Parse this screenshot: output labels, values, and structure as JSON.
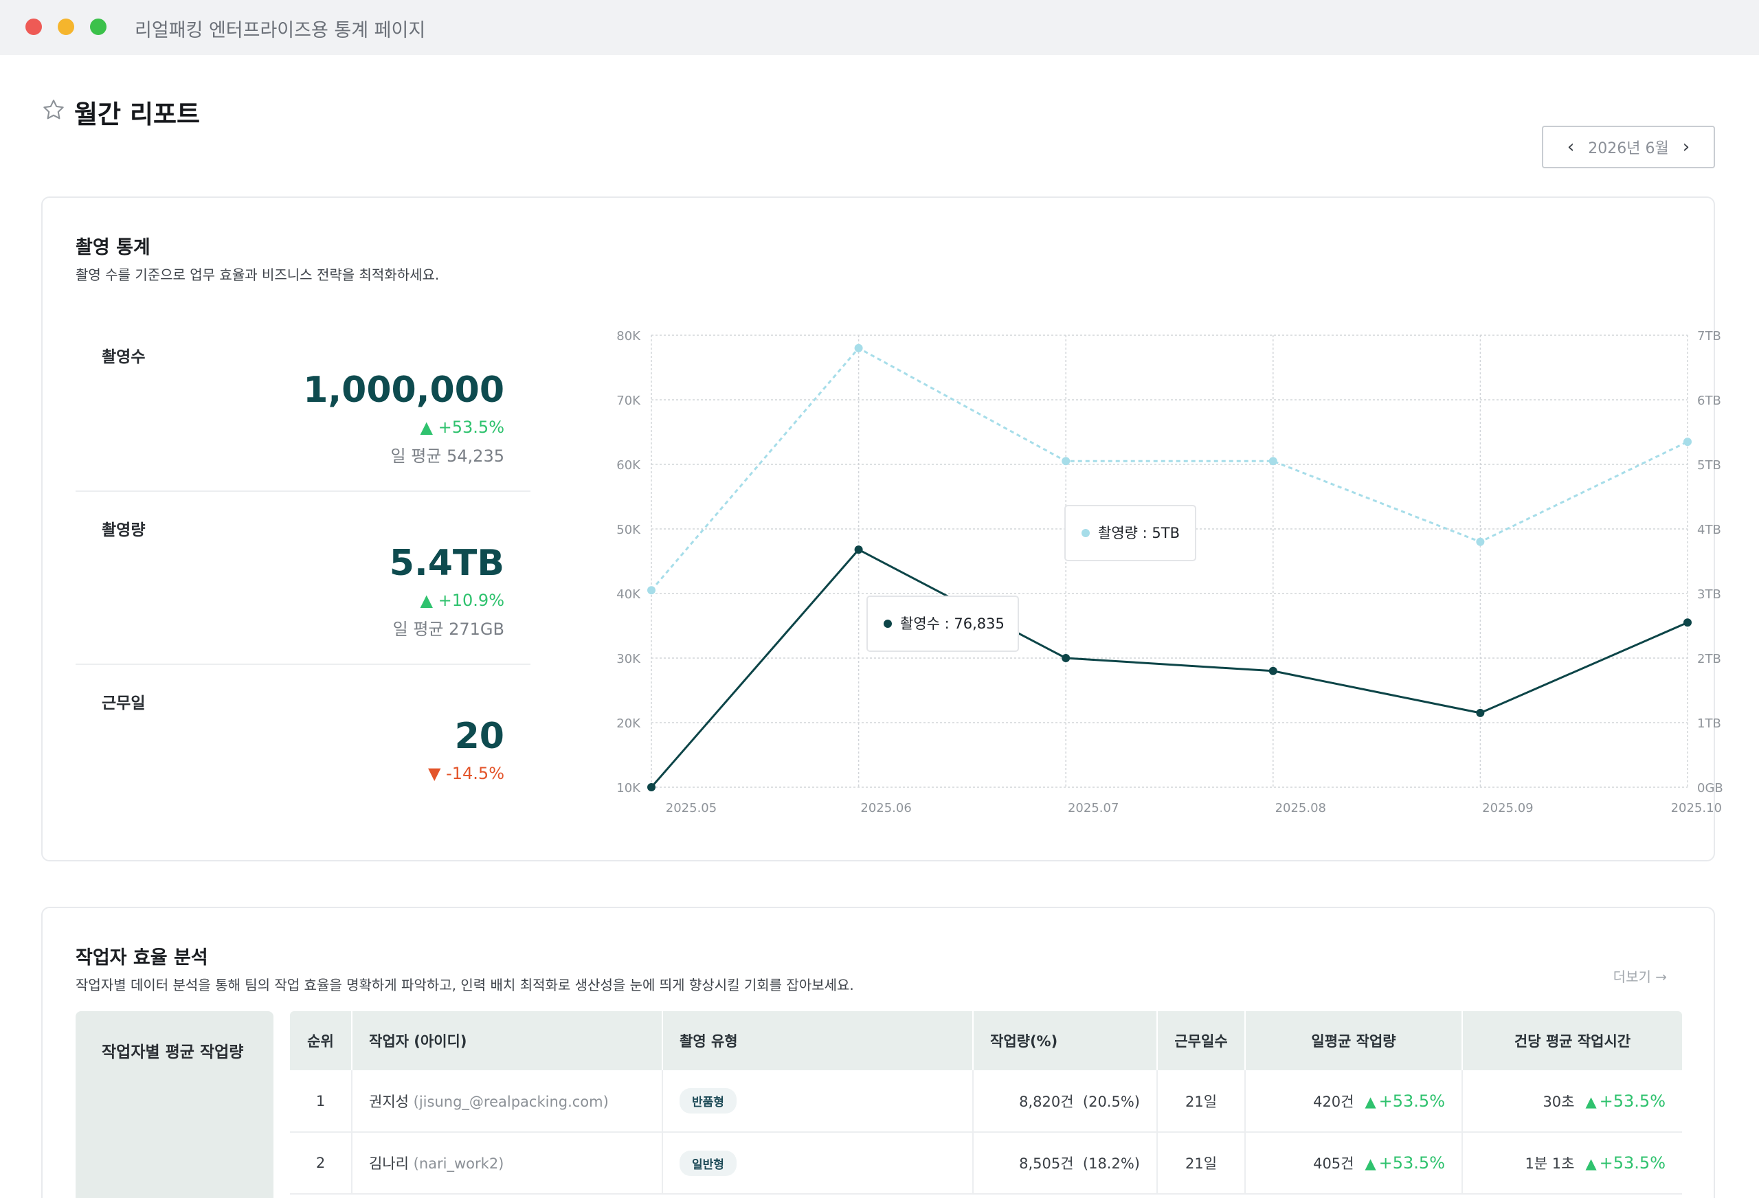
{
  "window": {
    "title": "리얼패킹 엔터프라이즈용 통계 페이지"
  },
  "page": {
    "title": "월간 리포트",
    "month_label": "2026년  6월"
  },
  "shoot_stats": {
    "title": "촬영 통계",
    "description": "촬영 수를 기준으로 업무 효율과 비즈니스 전략을 최적화하세요.",
    "cards": [
      {
        "label": "촬영수",
        "value": "1,000,000",
        "change": "+53.5%",
        "avg": "일 평균 54,235"
      },
      {
        "label": "촬영량",
        "value": "5.4TB",
        "change": "+10.9%",
        "avg": "일 평균 271GB"
      },
      {
        "label": "근무일",
        "value": "20",
        "change": "-14.5%"
      }
    ]
  },
  "chart_data": {
    "type": "line",
    "x": [
      "2025.05",
      "2025.06",
      "2025.07",
      "2025.08",
      "2025.09",
      "2025.10"
    ],
    "y_left_ticks": [
      "80K",
      "70K",
      "60K",
      "50K",
      "40K",
      "30K",
      "20K",
      "10K"
    ],
    "y_right_ticks": [
      "7TB",
      "6TB",
      "5TB",
      "4TB",
      "3TB",
      "2TB",
      "1TB",
      "0GB"
    ],
    "y_left_range": [
      10000,
      80000
    ],
    "y_right_range": [
      0,
      7
    ],
    "series": [
      {
        "name": "촬영수",
        "axis": "left",
        "style": "solid",
        "color": "#0d4548",
        "values": [
          10000,
          46800,
          30000,
          28000,
          21500,
          35500
        ]
      },
      {
        "name": "촬영량",
        "axis": "right",
        "style": "dashed",
        "color": "#a6dde9",
        "values": [
          3.05,
          6.8,
          5.05,
          5.05,
          3.8,
          5.35
        ]
      }
    ],
    "tooltips": [
      {
        "text": "촬영수 : 76,835",
        "dot_color": "#0d4548"
      },
      {
        "text": "촬영량 : 5TB",
        "dot_color": "#a6dde9"
      }
    ],
    "grid": true
  },
  "worker_analysis": {
    "title": "작업자 효율 분석",
    "description": "작업자별 데이터 분석을 통해 팀의 작업 효율을 명확하게 파악하고, 인력 배치 최적화로 생산성을 눈에 띄게 향상시킬 기회를 잡아보세요.",
    "more_label": "더보기 →",
    "side_label": "작업자별 평균 작업량",
    "columns": [
      "순위",
      "작업자 (아이디)",
      "촬영 유형",
      "작업량(%)",
      "근무일수",
      "일평균 작업량",
      "건당 평균 작업시간"
    ],
    "rows": [
      {
        "rank": "1",
        "name": "권지성",
        "id": "(jisung_@realpacking.com)",
        "type": "반품형",
        "amount": "8,820건",
        "pct": "(20.5%)",
        "days": "21일",
        "daily": "420건",
        "daily_change": "+53.5%",
        "per": "30초",
        "per_change": "+53.5%"
      },
      {
        "rank": "2",
        "name": "김나리",
        "id": "(nari_work2)",
        "type": "일반형",
        "amount": "8,505건",
        "pct": "(18.2%)",
        "days": "21일",
        "daily": "405건",
        "daily_change": "+53.5%",
        "per": "1분 1초",
        "per_change": "+53.5%"
      }
    ]
  },
  "colors": {
    "accent": "#0e4b4f",
    "up": "#2fc26e",
    "down": "#e3542a",
    "light_series": "#a6dde9"
  }
}
